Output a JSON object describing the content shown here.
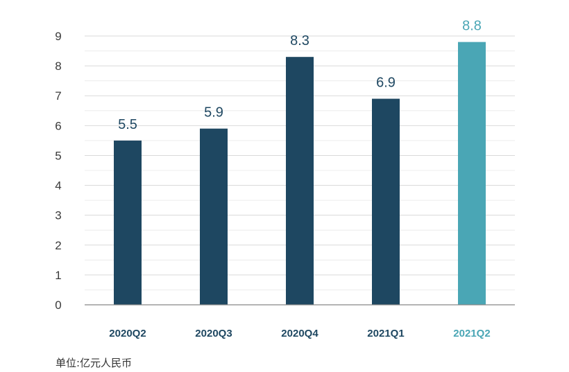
{
  "chart_data": {
    "type": "bar",
    "categories": [
      "2020Q2",
      "2020Q3",
      "2020Q4",
      "2021Q1",
      "2021Q2"
    ],
    "values": [
      5.5,
      5.9,
      8.3,
      6.9,
      8.8
    ],
    "value_labels": [
      "5.5",
      "5.9",
      "8.3",
      "6.9",
      "8.8"
    ],
    "ylim": [
      0,
      9
    ],
    "yticks": [
      0,
      1,
      2,
      3,
      4,
      5,
      6,
      7,
      8,
      9
    ],
    "grid": true,
    "note": "单位:亿元人民币",
    "colors": {
      "bar": "#1e4761",
      "highlight_bar": "#4aa6b5",
      "axis": "#888888",
      "grid": "#d9d9d9",
      "label": "#1e4761",
      "highlight_label": "#4aa6b5"
    },
    "highlight_index": 4
  }
}
